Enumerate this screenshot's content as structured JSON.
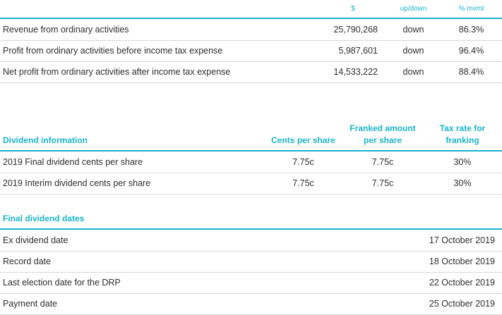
{
  "results": {
    "headers": {
      "amount": "$",
      "direction": "up/down",
      "movement": "% mvmt"
    },
    "rows": [
      {
        "label": "Revenue from ordinary activities",
        "amount": "25,790,268",
        "direction": "down",
        "movement": "86.3%"
      },
      {
        "label": "Profit from ordinary activities before income tax expense",
        "amount": "5,987,601",
        "direction": "down",
        "movement": "96.4%"
      },
      {
        "label": "Net profit from ordinary activities after income tax expense",
        "amount": "14,533,222",
        "direction": "down",
        "movement": "88.4%"
      }
    ]
  },
  "dividends": {
    "headers": {
      "info": "Dividend information",
      "cents": "Cents per share",
      "franked_1": "Franked amount",
      "franked_2": "per share",
      "tax_1": "Tax rate for",
      "tax_2": "franking"
    },
    "rows": [
      {
        "label": "2019 Final dividend cents per share",
        "cents": "7.75c",
        "franked": "7.75c",
        "tax": "30%"
      },
      {
        "label": "2019 Interim dividend cents per share",
        "cents": "7.75c",
        "franked": "7.75c",
        "tax": "30%"
      }
    ]
  },
  "dates": {
    "title": "Final dividend dates",
    "rows": [
      {
        "label": "Ex dividend date",
        "value": "17 October 2019"
      },
      {
        "label": "Record date",
        "value": "18 October 2019"
      },
      {
        "label": "Last election date for the DRP",
        "value": "22 October 2019"
      },
      {
        "label": "Payment date",
        "value": "25 October 2019"
      }
    ]
  }
}
